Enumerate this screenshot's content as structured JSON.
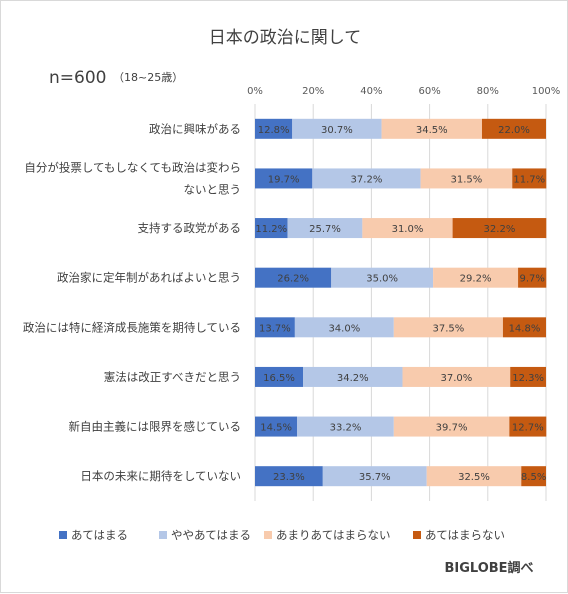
{
  "chart_data": {
    "type": "bar",
    "orientation": "horizontal",
    "stacked": "percent",
    "title": "日本の政治に関して",
    "sample_size": "n=600",
    "sample_note": "（18~25歳）",
    "source": "BIGLOBE調べ",
    "xlim": [
      0,
      100
    ],
    "x_ticks": [
      "0%",
      "20%",
      "40%",
      "60%",
      "80%",
      "100%"
    ],
    "grid": true,
    "legend_position": "bottom",
    "categories": [
      [
        "政治に興味がある"
      ],
      [
        "自分が投票してもしなくても政治は変わら",
        "ないと思う"
      ],
      [
        "支持する政党がある"
      ],
      [
        "政治家に定年制があればよいと思う"
      ],
      [
        "政治には特に経済成長施策を期待している"
      ],
      [
        "憲法は改正すべきだと思う"
      ],
      [
        "新自由主義には限界を感じている"
      ],
      [
        "日本の未来に期待をしていない"
      ]
    ],
    "series": [
      {
        "name": "あてはまる",
        "color": "#4472c4",
        "values": [
          12.8,
          19.7,
          11.2,
          26.2,
          13.7,
          16.5,
          14.5,
          23.3
        ]
      },
      {
        "name": "ややあてはまる",
        "color": "#b4c7e7",
        "values": [
          30.7,
          37.2,
          25.7,
          35.0,
          34.0,
          34.2,
          33.2,
          35.7
        ]
      },
      {
        "name": "あまりあてはまらない",
        "color": "#f8cbad",
        "values": [
          34.5,
          31.5,
          31.0,
          29.2,
          37.5,
          37.0,
          39.7,
          32.5
        ]
      },
      {
        "name": "あてはまらない",
        "color": "#c55a11",
        "values": [
          22.0,
          11.7,
          32.2,
          9.7,
          14.8,
          12.3,
          12.7,
          8.5
        ]
      }
    ]
  }
}
